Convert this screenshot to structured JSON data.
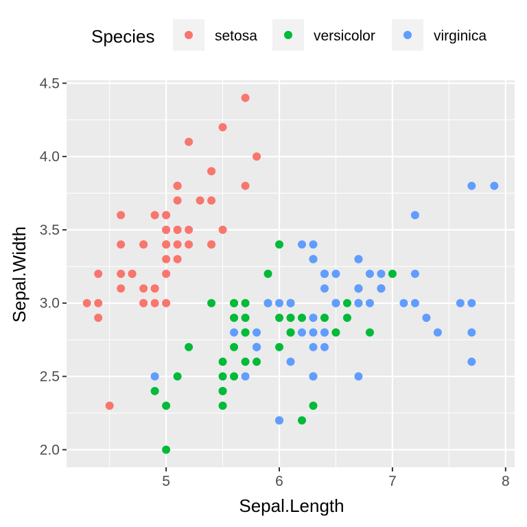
{
  "chart_data": {
    "type": "scatter",
    "xlabel": "Sepal.Length",
    "ylabel": "Sepal.Width",
    "xlim": [
      4.3,
      7.9
    ],
    "ylim": [
      2.0,
      4.4
    ],
    "x_ticks": [
      5,
      6,
      7,
      8
    ],
    "x_tick_labels": [
      "5",
      "6",
      "7",
      "8"
    ],
    "y_ticks": [
      2.0,
      2.5,
      3.0,
      3.5,
      4.0,
      4.5
    ],
    "y_tick_labels": [
      "2.0",
      "2.5",
      "3.0",
      "3.5",
      "4.0",
      "4.5"
    ],
    "grid": true,
    "legend": {
      "title": "Species",
      "position": "top"
    },
    "series": [
      {
        "name": "setosa",
        "color": "#F8766D",
        "x": [
          5.1,
          4.9,
          4.7,
          4.6,
          5.0,
          5.4,
          4.6,
          5.0,
          4.4,
          4.9,
          5.4,
          4.8,
          4.8,
          4.3,
          5.8,
          5.7,
          5.4,
          5.1,
          5.7,
          5.1,
          5.4,
          5.1,
          4.6,
          5.1,
          4.8,
          5.0,
          5.0,
          5.2,
          5.2,
          4.7,
          4.8,
          5.4,
          5.2,
          5.5,
          4.9,
          5.0,
          5.5,
          4.9,
          4.4,
          5.1,
          5.0,
          4.5,
          4.4,
          5.0,
          5.1,
          4.8,
          5.1,
          4.6,
          5.3,
          5.0
        ],
        "y": [
          3.5,
          3.0,
          3.2,
          3.1,
          3.6,
          3.9,
          3.4,
          3.4,
          2.9,
          3.1,
          3.7,
          3.4,
          3.0,
          3.0,
          4.0,
          4.4,
          3.9,
          3.5,
          3.8,
          3.8,
          3.4,
          3.7,
          3.6,
          3.3,
          3.4,
          3.0,
          3.4,
          3.5,
          3.4,
          3.2,
          3.1,
          3.4,
          4.1,
          4.2,
          3.1,
          3.2,
          3.5,
          3.6,
          3.0,
          3.4,
          3.5,
          2.3,
          3.2,
          3.5,
          3.8,
          3.0,
          3.8,
          3.2,
          3.7,
          3.3
        ]
      },
      {
        "name": "versicolor",
        "color": "#00BA38",
        "x": [
          7.0,
          6.4,
          6.9,
          5.5,
          6.5,
          5.7,
          6.3,
          4.9,
          6.6,
          5.2,
          5.0,
          5.9,
          6.0,
          6.1,
          5.6,
          6.7,
          5.6,
          5.8,
          6.2,
          5.6,
          5.9,
          6.1,
          6.3,
          6.1,
          6.4,
          6.6,
          6.8,
          6.7,
          6.0,
          5.7,
          5.5,
          5.5,
          5.8,
          6.0,
          5.4,
          6.0,
          6.7,
          6.3,
          5.6,
          5.5,
          5.5,
          6.1,
          5.8,
          5.0,
          5.6,
          5.7,
          5.7,
          6.2,
          5.1,
          5.7
        ],
        "y": [
          3.2,
          3.2,
          3.1,
          2.3,
          2.8,
          2.8,
          3.3,
          2.4,
          2.9,
          2.7,
          2.0,
          3.0,
          2.2,
          2.9,
          2.9,
          3.1,
          3.0,
          2.7,
          2.2,
          2.5,
          3.2,
          2.8,
          2.5,
          2.8,
          2.9,
          3.0,
          2.8,
          3.0,
          2.9,
          2.6,
          2.4,
          2.4,
          2.7,
          2.7,
          3.0,
          3.4,
          3.1,
          2.3,
          3.0,
          2.5,
          2.6,
          3.0,
          2.6,
          2.3,
          2.7,
          3.0,
          2.9,
          2.9,
          2.5,
          2.8
        ]
      },
      {
        "name": "virginica",
        "color": "#619CFF",
        "x": [
          6.3,
          5.8,
          7.1,
          6.3,
          6.5,
          7.6,
          4.9,
          7.3,
          6.7,
          7.2,
          6.5,
          6.4,
          6.8,
          5.7,
          5.8,
          6.4,
          6.5,
          7.7,
          7.7,
          6.0,
          6.9,
          5.6,
          7.7,
          6.3,
          6.7,
          7.2,
          6.2,
          6.1,
          6.4,
          7.2,
          7.4,
          7.9,
          6.4,
          6.3,
          6.1,
          7.7,
          6.3,
          6.4,
          6.0,
          6.9,
          6.7,
          6.9,
          5.8,
          6.8,
          6.7,
          6.7,
          6.3,
          6.5,
          6.2,
          5.9
        ],
        "y": [
          3.3,
          2.7,
          3.0,
          2.9,
          3.0,
          3.0,
          2.5,
          2.9,
          2.5,
          3.6,
          3.2,
          2.7,
          3.0,
          2.5,
          2.8,
          3.2,
          3.0,
          3.8,
          2.6,
          2.2,
          3.2,
          2.8,
          2.8,
          2.7,
          3.3,
          3.2,
          2.8,
          3.0,
          2.8,
          3.0,
          2.8,
          3.8,
          2.8,
          2.8,
          2.6,
          3.0,
          3.4,
          3.1,
          3.0,
          3.1,
          3.1,
          3.1,
          2.7,
          3.2,
          3.3,
          3.0,
          2.5,
          3.0,
          3.4,
          3.0
        ]
      }
    ]
  }
}
